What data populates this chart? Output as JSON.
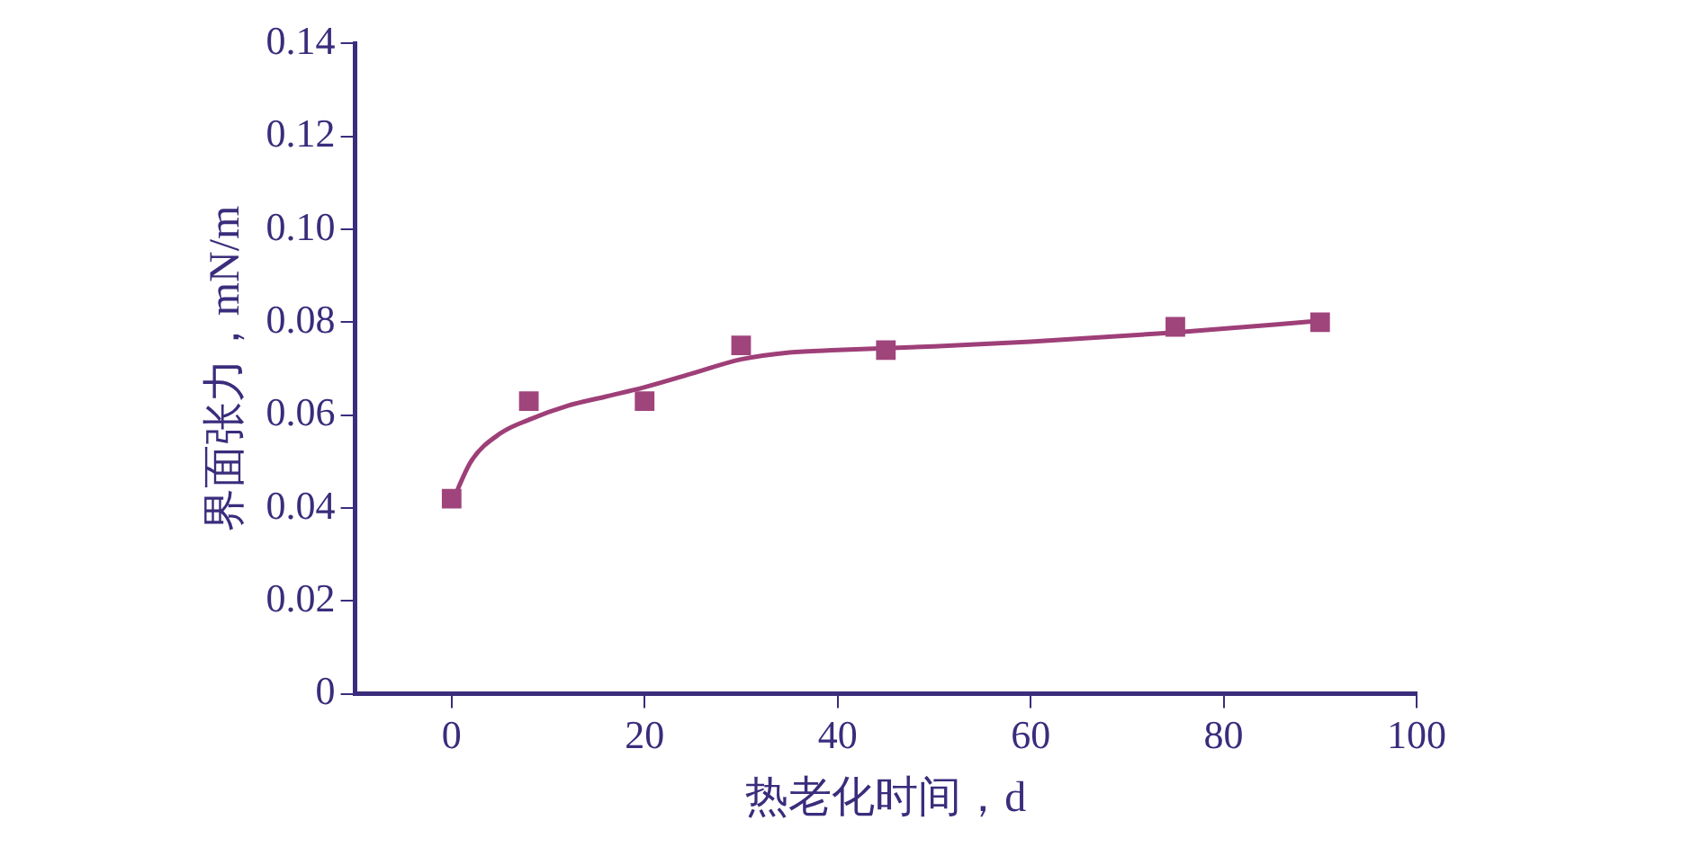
{
  "chart_data": {
    "type": "scatter",
    "xlabel": "热老化时间，d",
    "ylabel": "界面张力，mN/m",
    "xlim": [
      -10,
      100
    ],
    "ylim": [
      0,
      0.14
    ],
    "xticks": [
      0,
      20,
      40,
      60,
      80,
      100
    ],
    "yticks": [
      {
        "value": 0,
        "label": "0"
      },
      {
        "value": 0.02,
        "label": "0.02"
      },
      {
        "value": 0.04,
        "label": "0.04"
      },
      {
        "value": 0.06,
        "label": "0.06"
      },
      {
        "value": 0.08,
        "label": "0.08"
      },
      {
        "value": 0.1,
        "label": "0.10"
      },
      {
        "value": 0.12,
        "label": "0.12"
      },
      {
        "value": 0.14,
        "label": "0.14"
      }
    ],
    "series": [
      {
        "type": "line",
        "color": "#9e3f78",
        "marker": "none",
        "line_style": "solid",
        "x": [
          0,
          2,
          5,
          8,
          12,
          16,
          20,
          25,
          30,
          35,
          40,
          50,
          60,
          75,
          90
        ],
        "values": [
          0.041,
          0.05,
          0.056,
          0.059,
          0.062,
          0.064,
          0.066,
          0.069,
          0.072,
          0.0735,
          0.074,
          0.0748,
          0.0758,
          0.0778,
          0.0803
        ]
      },
      {
        "color": "#a0447c",
        "marker": "square",
        "x": [
          0,
          8,
          20,
          30,
          45,
          75,
          90
        ],
        "values": [
          0.042,
          0.063,
          0.063,
          0.075,
          0.074,
          0.079,
          0.08
        ]
      }
    ]
  }
}
